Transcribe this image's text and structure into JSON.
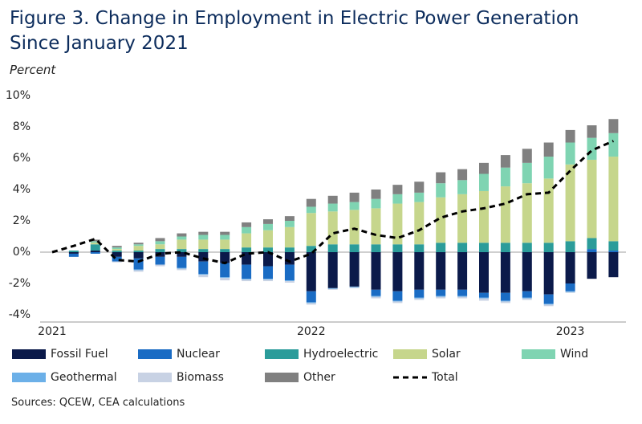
{
  "chart_data": {
    "type": "bar",
    "stacked": true,
    "title": "Figure 3. Change in Employment in Electric Power Generation Since January 2021",
    "subtitle": "Percent",
    "source": "Sources: QCEW, CEA calculations",
    "categories": [
      "2021",
      null,
      null,
      null,
      null,
      null,
      null,
      null,
      null,
      null,
      null,
      null,
      "2022",
      null,
      null,
      null,
      null,
      null,
      null,
      null,
      null,
      null,
      null,
      null,
      "2023",
      null,
      null
    ],
    "ylim": [
      -4,
      10
    ],
    "yticks": [
      {
        "value": -4,
        "label": "-4%"
      },
      {
        "value": -2,
        "label": "-2%"
      },
      {
        "value": 0,
        "label": "0%"
      },
      {
        "value": 2,
        "label": "2%"
      },
      {
        "value": 4,
        "label": "4%"
      },
      {
        "value": 6,
        "label": "6%"
      },
      {
        "value": 8,
        "label": "8%"
      },
      {
        "value": 10,
        "label": "10%"
      }
    ],
    "series": [
      {
        "name": "Fossil Fuel",
        "color": "#0b1a4a",
        "values": [
          0,
          -0.1,
          0.1,
          -0.3,
          -0.4,
          -0.3,
          -0.3,
          -0.6,
          -0.7,
          -0.8,
          -0.9,
          -0.8,
          -2.5,
          -2.3,
          -2.2,
          -2.4,
          -2.5,
          -2.4,
          -2.4,
          -2.4,
          -2.6,
          -2.6,
          -2.5,
          -2.7,
          -2.0,
          -1.7,
          -1.6
        ]
      },
      {
        "name": "Nuclear",
        "color": "#1a6cc4",
        "values": [
          0,
          -0.2,
          -0.1,
          -0.3,
          -0.7,
          -0.5,
          -0.7,
          -0.8,
          -0.9,
          -0.9,
          -0.8,
          -1.0,
          -0.7,
          0,
          0,
          -0.4,
          -0.6,
          -0.5,
          -0.4,
          -0.4,
          -0.3,
          -0.5,
          -0.4,
          -0.6,
          -0.5,
          0.2,
          0.1
        ]
      },
      {
        "name": "Hydroelectric",
        "color": "#2b9c9a",
        "values": [
          0,
          0.1,
          0.4,
          0.1,
          0.1,
          0.2,
          0.2,
          0.2,
          0.2,
          0.3,
          0.3,
          0.3,
          0.4,
          0.5,
          0.5,
          0.5,
          0.5,
          0.5,
          0.6,
          0.6,
          0.6,
          0.6,
          0.6,
          0.6,
          0.7,
          0.7,
          0.6
        ]
      },
      {
        "name": "Solar",
        "color": "#c6d68c",
        "values": [
          0,
          0,
          0.1,
          0.1,
          0.3,
          0.3,
          0.6,
          0.6,
          0.6,
          0.9,
          1.1,
          1.3,
          2.1,
          2.1,
          2.2,
          2.3,
          2.6,
          2.7,
          2.9,
          3.1,
          3.3,
          3.6,
          3.8,
          4.1,
          4.9,
          5.0,
          5.4
        ]
      },
      {
        "name": "Wind",
        "color": "#7fd4b2",
        "values": [
          0,
          0,
          0.1,
          0.1,
          0.1,
          0.2,
          0.2,
          0.3,
          0.3,
          0.4,
          0.4,
          0.4,
          0.4,
          0.5,
          0.5,
          0.6,
          0.6,
          0.6,
          0.9,
          0.9,
          1.1,
          1.2,
          1.3,
          1.4,
          1.4,
          1.4,
          1.5
        ]
      },
      {
        "name": "Geothermal",
        "color": "#6cb0e8",
        "values": [
          0,
          0,
          0,
          0,
          -0.05,
          0,
          -0.05,
          -0.05,
          -0.05,
          -0.05,
          -0.05,
          -0.05,
          -0.05,
          -0.05,
          -0.05,
          -0.05,
          -0.05,
          -0.05,
          -0.05,
          -0.05,
          -0.05,
          -0.05,
          -0.05,
          -0.05,
          -0.05,
          0,
          0
        ]
      },
      {
        "name": "Biomass",
        "color": "#c8d2e4",
        "values": [
          0,
          0,
          0,
          -0.05,
          -0.1,
          -0.1,
          -0.1,
          -0.15,
          -0.15,
          -0.1,
          -0.1,
          -0.1,
          -0.1,
          -0.05,
          -0.05,
          -0.1,
          -0.1,
          -0.1,
          -0.1,
          -0.1,
          -0.15,
          -0.1,
          -0.1,
          -0.1,
          -0.05,
          0,
          0
        ]
      },
      {
        "name": "Other",
        "color": "#808080",
        "values": [
          0,
          0,
          0.1,
          0.1,
          0.1,
          0.2,
          0.2,
          0.2,
          0.2,
          0.3,
          0.3,
          0.3,
          0.5,
          0.5,
          0.6,
          0.6,
          0.6,
          0.7,
          0.7,
          0.7,
          0.7,
          0.8,
          0.9,
          0.9,
          0.8,
          0.8,
          0.9
        ]
      },
      {
        "name": "Total",
        "type": "line",
        "line_style": "dashed",
        "color": "#000000",
        "values": [
          0,
          0.4,
          0.85,
          -0.5,
          -0.6,
          -0.1,
          0,
          -0.4,
          -0.7,
          -0.1,
          0,
          -0.6,
          -0.1,
          1.2,
          1.5,
          1.1,
          0.9,
          1.4,
          2.2,
          2.6,
          2.8,
          3.1,
          3.7,
          3.8,
          5.2,
          6.5,
          7.1
        ]
      }
    ]
  }
}
